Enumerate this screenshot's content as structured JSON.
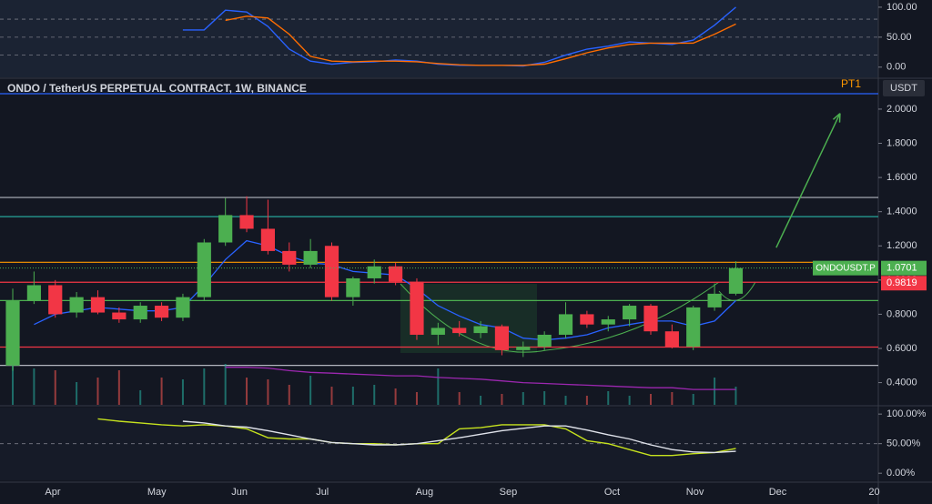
{
  "chart_data": {
    "type": "candlestick",
    "title": "ONDO / TetherUS PERPETUAL CONTRACT, 1W, BINANCE",
    "currency": "USDT",
    "xlim": [
      -0.6,
      40.7
    ],
    "xticks": [
      {
        "value": 1.88,
        "label": "Apr"
      },
      {
        "value": 6.77,
        "label": "May"
      },
      {
        "value": 10.66,
        "label": "Jun"
      },
      {
        "value": 14.56,
        "label": "Jul"
      },
      {
        "value": 19.36,
        "label": "Aug"
      },
      {
        "value": 23.3,
        "label": "Sep"
      },
      {
        "value": 28.18,
        "label": "Oct"
      },
      {
        "value": 32.08,
        "label": "Nov"
      },
      {
        "value": 35.97,
        "label": "Dec"
      },
      {
        "value": 40.51,
        "label": "20"
      }
    ],
    "ylim": [
      0.27,
      2.17
    ],
    "yticks": [
      {
        "value": 0.4,
        "label": "0.4000"
      },
      {
        "value": 0.6,
        "label": "0.6000"
      },
      {
        "value": 0.8,
        "label": "0.8000"
      },
      {
        "value": 1,
        "label": "1.0000"
      },
      {
        "value": 1.2,
        "label": "1.2000"
      },
      {
        "value": 1.4,
        "label": "1.4000"
      },
      {
        "value": 1.6,
        "label": "1.6000"
      },
      {
        "value": 1.8,
        "label": "1.8000"
      },
      {
        "value": 2,
        "label": "2.0000"
      }
    ],
    "up_color": "#4caf50",
    "down_color": "#f23645",
    "open": [
      0.5,
      0.88,
      0.97,
      0.81,
      0.9,
      0.81,
      0.77,
      0.85,
      0.78,
      0.9,
      1.22,
      1.38,
      1.3,
      1.17,
      1.09,
      1.2,
      0.9,
      1.01,
      1.08,
      0.99,
      0.68,
      0.72,
      0.69,
      0.73,
      0.59,
      0.61,
      0.68,
      0.8,
      0.74,
      0.77,
      0.85,
      0.7,
      0.61,
      0.84,
      0.92
    ],
    "high": [
      0.95,
      1.05,
      1.0,
      0.93,
      0.94,
      0.84,
      0.87,
      0.87,
      0.92,
      1.24,
      1.48,
      1.49,
      1.47,
      1.22,
      1.24,
      1.22,
      1.02,
      1.12,
      1.1,
      1.01,
      0.75,
      0.76,
      0.76,
      0.74,
      0.64,
      0.7,
      0.87,
      0.82,
      0.79,
      0.86,
      0.86,
      0.74,
      0.85,
      0.98,
      1.11
    ],
    "low": [
      0.47,
      0.86,
      0.78,
      0.78,
      0.8,
      0.75,
      0.75,
      0.76,
      0.76,
      0.88,
      1.2,
      1.28,
      1.15,
      1.05,
      1.07,
      0.88,
      0.85,
      0.98,
      0.97,
      0.65,
      0.62,
      0.67,
      0.66,
      0.56,
      0.55,
      0.59,
      0.66,
      0.72,
      0.7,
      0.73,
      0.68,
      0.6,
      0.59,
      0.82,
      0.91
    ],
    "close": [
      0.88,
      0.97,
      0.8,
      0.9,
      0.81,
      0.77,
      0.85,
      0.78,
      0.9,
      1.22,
      1.38,
      1.3,
      1.17,
      1.09,
      1.17,
      0.9,
      1.01,
      1.08,
      0.99,
      0.68,
      0.72,
      0.69,
      0.73,
      0.59,
      0.61,
      0.68,
      0.8,
      0.74,
      0.77,
      0.85,
      0.7,
      0.61,
      0.84,
      0.92,
      1.07
    ],
    "volume": {
      "lim": [
        0,
        357
      ],
      "values": [
        48,
        40,
        38,
        25,
        30,
        38,
        16,
        30,
        28,
        40,
        45,
        30,
        28,
        22,
        32,
        20,
        20,
        22,
        18,
        14,
        40,
        14,
        10,
        12,
        14,
        15,
        10,
        10,
        15,
        10,
        12,
        14,
        12,
        30,
        20
      ]
    },
    "lines": [
      {
        "color": "#2962ff",
        "values": [
          null,
          0.74,
          0.8,
          0.82,
          0.84,
          0.83,
          0.82,
          0.82,
          0.84,
          0.97,
          1.12,
          1.23,
          1.2,
          1.14,
          1.1,
          1.09,
          1.05,
          1.04,
          1.03,
          0.95,
          0.85,
          0.79,
          0.74,
          0.72,
          0.66,
          0.65,
          0.66,
          0.68,
          0.72,
          0.74,
          0.76,
          0.76,
          0.73,
          0.76,
          0.88
        ]
      },
      {
        "color": "#9c27b0",
        "values": [
          null,
          null,
          null,
          null,
          null,
          null,
          null,
          null,
          null,
          null,
          0.49,
          0.49,
          0.485,
          0.47,
          0.46,
          0.455,
          0.45,
          0.445,
          0.44,
          0.44,
          0.43,
          0.425,
          0.42,
          0.41,
          0.4,
          0.395,
          0.39,
          0.385,
          0.38,
          0.375,
          0.37,
          0.37,
          0.36,
          0.36,
          0.36
        ]
      }
    ],
    "levels": [
      {
        "value": 2.09,
        "color": "#2962ff",
        "label": "PT1"
      },
      {
        "value": 1.483,
        "color": "#b2b5be"
      },
      {
        "value": 1.371,
        "color": "#26a69a"
      },
      {
        "value": 1.104,
        "color": "#ff9800"
      },
      {
        "value": 0.987,
        "color": "#f23645"
      },
      {
        "value": 0.88,
        "color": "#4caf50"
      },
      {
        "value": 0.608,
        "color": "#f23645"
      },
      {
        "value": 0.501,
        "color": "#b2b5be"
      }
    ],
    "arrow": {
      "x": [
        35.9,
        38.9
      ],
      "y": [
        1.19,
        1.975
      ],
      "color": "#4caf50"
    },
    "last_price": {
      "label": "ONDOUSDT.P",
      "value": 1.0701,
      "color": "#4caf50"
    },
    "marker": {
      "value": 0.9819,
      "color": "#f23645"
    },
    "osc_top": {
      "ylim": [
        -17,
        112
      ],
      "yticks": [
        {
          "value": 0,
          "label": "0.00"
        },
        {
          "value": 50,
          "label": "50.00"
        },
        {
          "value": 100,
          "label": "100.00"
        }
      ],
      "bands": [
        20,
        50,
        80
      ],
      "series": [
        {
          "color": "#2962ff",
          "values": [
            null,
            null,
            null,
            null,
            null,
            null,
            null,
            null,
            62,
            62,
            95,
            92,
            68,
            30,
            10,
            5,
            8,
            9,
            12,
            10,
            5,
            3,
            3,
            3,
            2,
            8,
            20,
            30,
            35,
            42,
            40,
            38,
            45,
            70,
            100
          ]
        },
        {
          "color": "#ff6d00",
          "values": [
            null,
            null,
            null,
            null,
            null,
            null,
            null,
            null,
            null,
            null,
            78,
            85,
            82,
            55,
            18,
            10,
            9,
            10,
            10,
            9,
            6,
            4,
            3,
            3,
            3,
            5,
            14,
            24,
            32,
            38,
            40,
            40,
            40,
            55,
            72
          ]
        }
      ]
    },
    "osc_bottom": {
      "ylim": [
        -12,
        111
      ],
      "yticks": [
        {
          "value": 0,
          "label": "0.00%"
        },
        {
          "value": 50,
          "label": "50.00%"
        },
        {
          "value": 100,
          "label": "100.00%"
        }
      ],
      "bands": [
        50
      ],
      "series": [
        {
          "color": "#c6e21e",
          "values": [
            null,
            null,
            null,
            null,
            92,
            88,
            85,
            82,
            80,
            82,
            80,
            75,
            60,
            58,
            58,
            52,
            50,
            50,
            48,
            50,
            50,
            75,
            77,
            82,
            82,
            82,
            75,
            55,
            50,
            40,
            30,
            30,
            33,
            35,
            42
          ]
        },
        {
          "color": "#e0e3eb",
          "values": [
            null,
            null,
            null,
            null,
            null,
            null,
            null,
            null,
            88,
            85,
            80,
            78,
            72,
            65,
            58,
            52,
            50,
            48,
            48,
            50,
            55,
            60,
            66,
            72,
            76,
            80,
            80,
            73,
            65,
            58,
            48,
            40,
            36,
            35,
            37
          ]
        }
      ]
    }
  }
}
